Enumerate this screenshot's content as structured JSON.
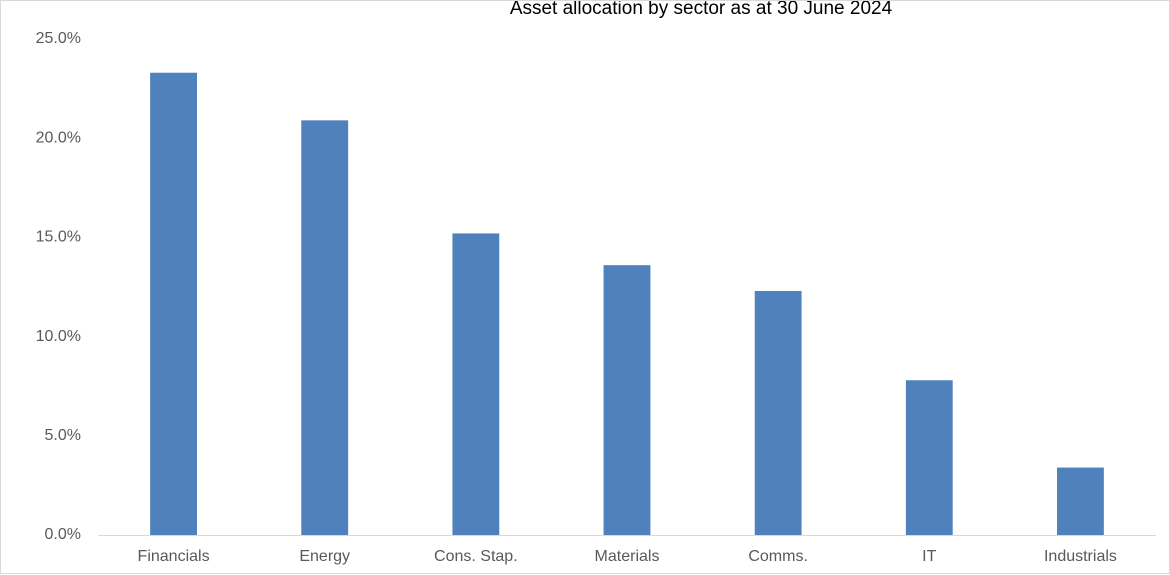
{
  "chart_data": {
    "type": "bar",
    "title": "Asset allocation by sector as at 30 June 2024",
    "xlabel": "",
    "ylabel": "",
    "categories": [
      "Financials",
      "Energy",
      "Cons. Stap.",
      "Materials",
      "Comms.",
      "IT",
      "Industrials"
    ],
    "values": [
      23.3,
      20.9,
      15.2,
      13.6,
      12.3,
      7.8,
      3.4
    ],
    "ylim": [
      0,
      25
    ],
    "yticks": [
      0,
      5,
      10,
      15,
      20,
      25
    ],
    "ytick_labels": [
      "0.0%",
      "5.0%",
      "10.0%",
      "15.0%",
      "20.0%",
      "25.0%"
    ],
    "grid": false,
    "legend": "none",
    "bar_color": "#4f81bd",
    "axis_color": "#d9d9d9"
  }
}
